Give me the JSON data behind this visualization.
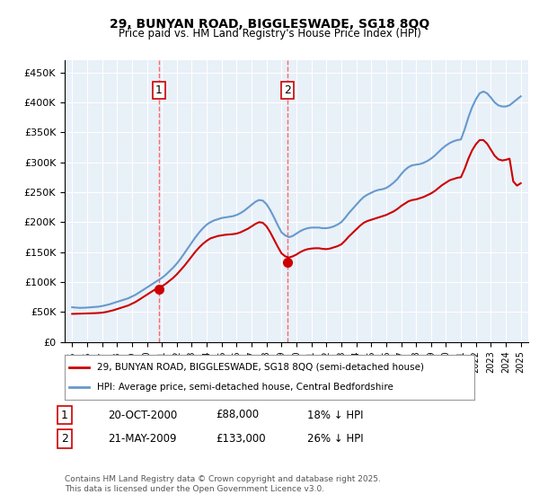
{
  "title": "29, BUNYAN ROAD, BIGGLESWADE, SG18 8QQ",
  "subtitle": "Price paid vs. HM Land Registry's House Price Index (HPI)",
  "legend_line1": "29, BUNYAN ROAD, BIGGLESWADE, SG18 8QQ (semi-detached house)",
  "legend_line2": "HPI: Average price, semi-detached house, Central Bedfordshire",
  "annotation1_label": "1",
  "annotation1_date": "20-OCT-2000",
  "annotation1_price": "£88,000",
  "annotation1_hpi": "18% ↓ HPI",
  "annotation2_label": "2",
  "annotation2_date": "21-MAY-2009",
  "annotation2_price": "£133,000",
  "annotation2_hpi": "26% ↓ HPI",
  "footer": "Contains HM Land Registry data © Crown copyright and database right 2025.\nThis data is licensed under the Open Government Licence v3.0.",
  "sale1_x": 2000.8,
  "sale1_y": 88000,
  "sale2_x": 2009.4,
  "sale2_y": 133000,
  "vline1_x": 2000.8,
  "vline2_x": 2009.4,
  "hpi_color": "#6699cc",
  "price_color": "#cc0000",
  "vline_color": "#ff6666",
  "background_color": "#e8f0f8",
  "ylim": [
    0,
    470000
  ],
  "xlim_start": 1994.5,
  "xlim_end": 2025.5,
  "yticks": [
    0,
    50000,
    100000,
    150000,
    200000,
    250000,
    300000,
    350000,
    400000,
    450000
  ],
  "xticks": [
    1995,
    1996,
    1997,
    1998,
    1999,
    2000,
    2001,
    2002,
    2003,
    2004,
    2005,
    2006,
    2007,
    2008,
    2009,
    2010,
    2011,
    2012,
    2013,
    2014,
    2015,
    2016,
    2017,
    2018,
    2019,
    2020,
    2021,
    2022,
    2023,
    2024,
    2025
  ],
  "hpi_data_x": [
    1995,
    1995.25,
    1995.5,
    1995.75,
    1996,
    1996.25,
    1996.5,
    1996.75,
    1997,
    1997.25,
    1997.5,
    1997.75,
    1998,
    1998.25,
    1998.5,
    1998.75,
    1999,
    1999.25,
    1999.5,
    1999.75,
    2000,
    2000.25,
    2000.5,
    2000.75,
    2001,
    2001.25,
    2001.5,
    2001.75,
    2002,
    2002.25,
    2002.5,
    2002.75,
    2003,
    2003.25,
    2003.5,
    2003.75,
    2004,
    2004.25,
    2004.5,
    2004.75,
    2005,
    2005.25,
    2005.5,
    2005.75,
    2006,
    2006.25,
    2006.5,
    2006.75,
    2007,
    2007.25,
    2007.5,
    2007.75,
    2008,
    2008.25,
    2008.5,
    2008.75,
    2009,
    2009.25,
    2009.5,
    2009.75,
    2010,
    2010.25,
    2010.5,
    2010.75,
    2011,
    2011.25,
    2011.5,
    2011.75,
    2012,
    2012.25,
    2012.5,
    2012.75,
    2013,
    2013.25,
    2013.5,
    2013.75,
    2014,
    2014.25,
    2014.5,
    2014.75,
    2015,
    2015.25,
    2015.5,
    2015.75,
    2016,
    2016.25,
    2016.5,
    2016.75,
    2017,
    2017.25,
    2017.5,
    2017.75,
    2018,
    2018.25,
    2018.5,
    2018.75,
    2019,
    2019.25,
    2019.5,
    2019.75,
    2020,
    2020.25,
    2020.5,
    2020.75,
    2021,
    2021.25,
    2021.5,
    2021.75,
    2022,
    2022.25,
    2022.5,
    2022.75,
    2023,
    2023.25,
    2023.5,
    2023.75,
    2024,
    2024.25,
    2024.5,
    2024.75,
    2025
  ],
  "hpi_data_y": [
    58000,
    57500,
    57000,
    57200,
    57500,
    58000,
    58500,
    59000,
    60000,
    61500,
    63000,
    65000,
    67000,
    69000,
    71000,
    73000,
    76000,
    79000,
    83000,
    87000,
    91000,
    95000,
    99000,
    103000,
    107000,
    112000,
    118000,
    124000,
    131000,
    139000,
    148000,
    157000,
    166000,
    175000,
    183000,
    190000,
    196000,
    200000,
    203000,
    205000,
    207000,
    208000,
    209000,
    210000,
    212000,
    215000,
    219000,
    224000,
    229000,
    234000,
    237000,
    236000,
    230000,
    220000,
    208000,
    195000,
    183000,
    178000,
    175000,
    177000,
    181000,
    185000,
    188000,
    190000,
    191000,
    191000,
    191000,
    190000,
    190000,
    191000,
    193000,
    196000,
    200000,
    207000,
    215000,
    222000,
    229000,
    236000,
    242000,
    246000,
    249000,
    252000,
    254000,
    255000,
    257000,
    261000,
    266000,
    272000,
    280000,
    287000,
    292000,
    295000,
    296000,
    297000,
    299000,
    302000,
    306000,
    311000,
    317000,
    323000,
    328000,
    332000,
    335000,
    337000,
    338000,
    355000,
    375000,
    392000,
    405000,
    415000,
    418000,
    415000,
    408000,
    400000,
    395000,
    393000,
    393000,
    395000,
    400000,
    405000,
    410000
  ],
  "price_data_x": [
    1995,
    1995.25,
    1995.5,
    1995.75,
    1996,
    1996.25,
    1996.5,
    1996.75,
    1997,
    1997.25,
    1997.5,
    1997.75,
    1998,
    1998.25,
    1998.5,
    1998.75,
    1999,
    1999.25,
    1999.5,
    1999.75,
    2000,
    2000.25,
    2000.5,
    2000.75,
    2001,
    2001.25,
    2001.5,
    2001.75,
    2002,
    2002.25,
    2002.5,
    2002.75,
    2003,
    2003.25,
    2003.5,
    2003.75,
    2004,
    2004.25,
    2004.5,
    2004.75,
    2005,
    2005.25,
    2005.5,
    2005.75,
    2006,
    2006.25,
    2006.5,
    2006.75,
    2007,
    2007.25,
    2007.5,
    2007.75,
    2008,
    2008.25,
    2008.5,
    2008.75,
    2009,
    2009.25,
    2009.5,
    2009.75,
    2010,
    2010.25,
    2010.5,
    2010.75,
    2011,
    2011.25,
    2011.5,
    2011.75,
    2012,
    2012.25,
    2012.5,
    2012.75,
    2013,
    2013.25,
    2013.5,
    2013.75,
    2014,
    2014.25,
    2014.5,
    2014.75,
    2015,
    2015.25,
    2015.5,
    2015.75,
    2016,
    2016.25,
    2016.5,
    2016.75,
    2017,
    2017.25,
    2017.5,
    2017.75,
    2018,
    2018.25,
    2018.5,
    2018.75,
    2019,
    2019.25,
    2019.5,
    2019.75,
    2020,
    2020.25,
    2020.5,
    2020.75,
    2021,
    2021.25,
    2021.5,
    2021.75,
    2022,
    2022.25,
    2022.5,
    2022.75,
    2023,
    2023.25,
    2023.5,
    2023.75,
    2024,
    2024.25,
    2024.5,
    2024.75,
    2025
  ],
  "price_data_y": [
    47000,
    47200,
    47400,
    47600,
    47800,
    48000,
    48200,
    48500,
    49000,
    50000,
    51500,
    53000,
    55000,
    57000,
    59000,
    61000,
    64000,
    67000,
    71000,
    75000,
    79000,
    83000,
    87000,
    90000,
    93000,
    97000,
    102000,
    107000,
    113000,
    120000,
    127000,
    135000,
    143000,
    151000,
    158000,
    164000,
    169000,
    173000,
    175000,
    177000,
    178000,
    179000,
    179500,
    180000,
    181000,
    183000,
    186000,
    189000,
    193000,
    197000,
    200000,
    199000,
    193000,
    183000,
    171000,
    159000,
    148000,
    143000,
    141000,
    143000,
    146000,
    150000,
    153000,
    155000,
    156000,
    156500,
    156500,
    155500,
    155000,
    156000,
    158000,
    160000,
    163000,
    169000,
    176000,
    182000,
    188000,
    194000,
    199000,
    202000,
    204000,
    206000,
    208000,
    210000,
    212000,
    215000,
    218000,
    222000,
    227000,
    231000,
    235000,
    237000,
    238000,
    240000,
    242000,
    245000,
    248000,
    252000,
    257000,
    262000,
    266000,
    270000,
    272000,
    274000,
    275000,
    289000,
    306000,
    320000,
    330000,
    337000,
    337000,
    331000,
    321000,
    311000,
    305000,
    303000,
    304000,
    306000,
    268000,
    261000,
    265000
  ]
}
